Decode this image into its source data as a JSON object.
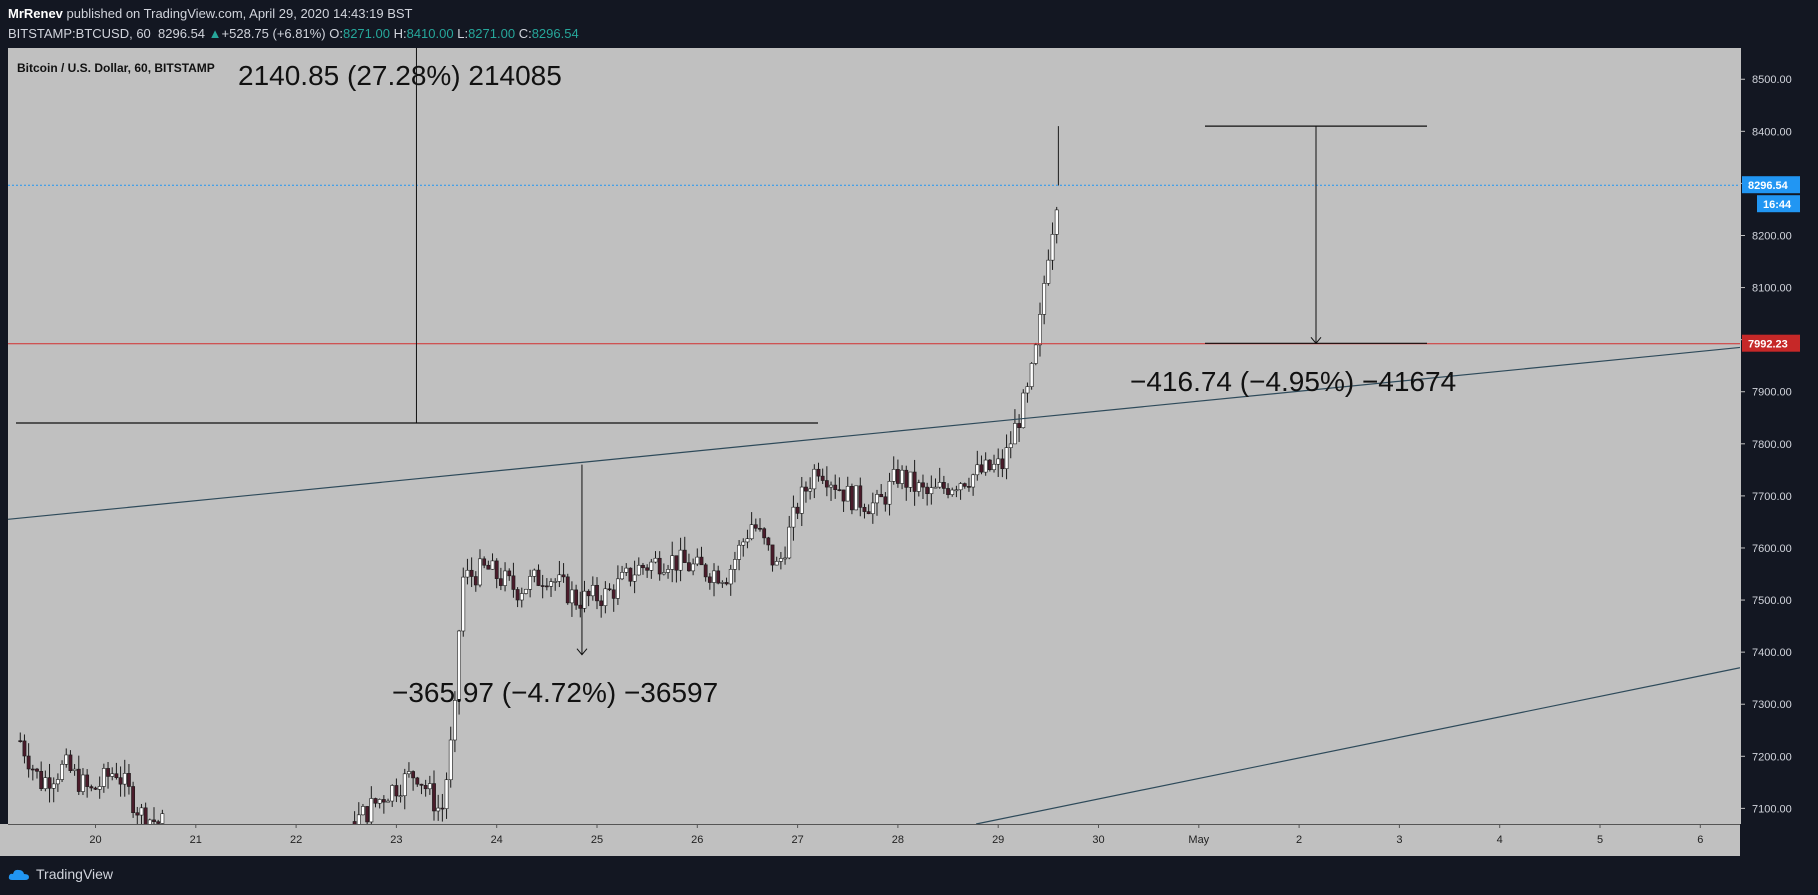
{
  "header": {
    "author": "MrRenev",
    "published_text": "published on TradingView.com, April 29, 2020 14:43:19 BST",
    "symbol": "BITSTAMP:BTCUSD, 60",
    "last": "8296.54",
    "change": "+528.75 (+6.81%)",
    "o_label": "O:",
    "o_value": "8271.00",
    "h_label": "H:",
    "h_value": "8410.00",
    "l_label": "L:",
    "l_value": "8271.00",
    "c_label": "C:",
    "c_value": "8296.54"
  },
  "footer": {
    "brand": "TradingView"
  },
  "colors": {
    "background": "#131722",
    "plot": "#c0c0c0",
    "candle_up": "#ffffff",
    "candle_down": "#4a1b2a",
    "wick": "#1b1b1b",
    "trendline": "#2e4a5a",
    "red_line": "#d32f2f",
    "price_badge": "#2196f3",
    "red_badge": "#c62828"
  },
  "chart_data": {
    "type": "candlestick",
    "title": "Bitcoin / U.S. Dollar, 60, BITSTAMP",
    "x_ticks": [
      "20",
      "21",
      "22",
      "23",
      "24",
      "25",
      "26",
      "27",
      "28",
      "29",
      "30",
      "May",
      "2",
      "3",
      "4",
      "5",
      "6"
    ],
    "y_ticks": [
      "8500.00",
      "8400.00",
      "8300.00",
      "8200.00",
      "8100.00",
      "8000.00",
      "7900.00",
      "7800.00",
      "7700.00",
      "7600.00",
      "7500.00",
      "7400.00",
      "7300.00",
      "7200.00",
      "7100.00"
    ],
    "ylim": [
      7070,
      8560
    ],
    "xlim": [
      "2020-04-19 06:00",
      "2020-05-06 12:00"
    ],
    "last_price": {
      "value": 8296.54,
      "label": "8296.54",
      "countdown": "16:44"
    },
    "horizontal_line": {
      "value": 7992.23,
      "label": "7992.23"
    },
    "price_path": [
      {
        "day": 19.25,
        "price": 7230
      },
      {
        "day": 19.45,
        "price": 7150
      },
      {
        "day": 19.7,
        "price": 7180
      },
      {
        "day": 19.95,
        "price": 7130
      },
      {
        "day": 20.2,
        "price": 7175
      },
      {
        "day": 20.45,
        "price": 7090
      },
      {
        "day": 20.65,
        "price": 7070
      },
      {
        "day": 22.6,
        "price": 7075
      },
      {
        "day": 22.9,
        "price": 7130
      },
      {
        "day": 23.2,
        "price": 7170
      },
      {
        "day": 23.45,
        "price": 7090
      },
      {
        "day": 23.58,
        "price": 7270
      },
      {
        "day": 23.65,
        "price": 7540
      },
      {
        "day": 23.9,
        "price": 7560
      },
      {
        "day": 24.2,
        "price": 7520
      },
      {
        "day": 24.5,
        "price": 7550
      },
      {
        "day": 24.8,
        "price": 7500
      },
      {
        "day": 25.1,
        "price": 7510
      },
      {
        "day": 25.4,
        "price": 7560
      },
      {
        "day": 25.7,
        "price": 7580
      },
      {
        "day": 26.0,
        "price": 7560
      },
      {
        "day": 26.3,
        "price": 7550
      },
      {
        "day": 26.55,
        "price": 7650
      },
      {
        "day": 26.8,
        "price": 7560
      },
      {
        "day": 27.0,
        "price": 7680
      },
      {
        "day": 27.2,
        "price": 7760
      },
      {
        "day": 27.5,
        "price": 7700
      },
      {
        "day": 27.8,
        "price": 7680
      },
      {
        "day": 28.0,
        "price": 7740
      },
      {
        "day": 28.3,
        "price": 7700
      },
      {
        "day": 28.6,
        "price": 7730
      },
      {
        "day": 28.9,
        "price": 7750
      },
      {
        "day": 29.05,
        "price": 7760
      },
      {
        "day": 29.15,
        "price": 7820
      },
      {
        "day": 29.3,
        "price": 7900
      },
      {
        "day": 29.4,
        "price": 8000
      },
      {
        "day": 29.48,
        "price": 8150
      },
      {
        "day": 29.55,
        "price": 8230
      },
      {
        "day": 29.6,
        "price": 8296
      }
    ],
    "measurements": [
      {
        "label": "2140.85 (27.28%) 214085"
      },
      {
        "label": "−365.97 (−4.72%) −36597"
      },
      {
        "label": "−416.74 (−4.95%) −41674"
      }
    ]
  }
}
